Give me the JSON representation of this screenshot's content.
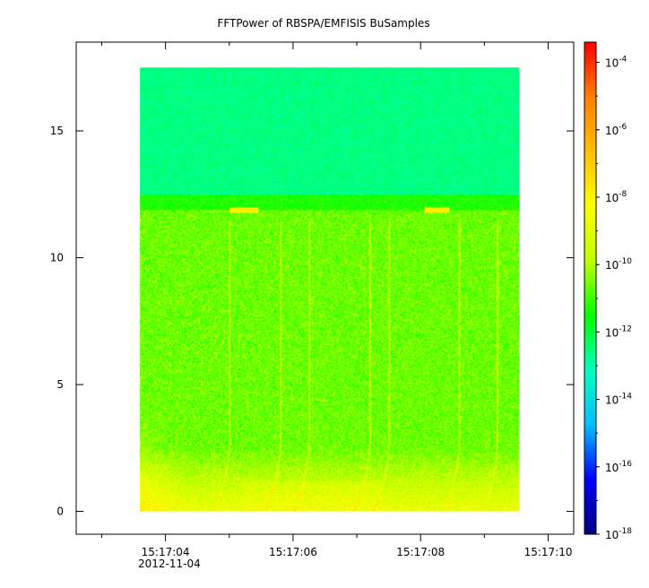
{
  "chart_data": {
    "type": "heatmap",
    "title": "FFTPower of RBSPA/EMFISIS  BuSamples",
    "xlabel": "",
    "ylabel": "",
    "x_ticks": [
      "15:17:04",
      "15:17:06",
      "15:17:08",
      "15:17:10"
    ],
    "x_ticks_seconds": [
      4,
      6,
      8,
      10
    ],
    "x_minor_ticks_seconds": [
      3,
      5,
      7,
      9
    ],
    "x_sublabel": "2012-11-04",
    "xlim_seconds": [
      2.6,
      10.4
    ],
    "data_time_range_seconds": [
      3.6,
      9.55
    ],
    "y_ticks": [
      0,
      5,
      10,
      15
    ],
    "ylim": [
      -0.9,
      18.5
    ],
    "data_y_range": [
      0,
      17.5
    ],
    "colorbar": {
      "scale": "log",
      "min_exp": -18,
      "max_exp": -3.4,
      "tick_exponents": [
        -4,
        -6,
        -8,
        -10,
        -12,
        -14,
        -16,
        -18
      ],
      "colormap": [
        "#00007f",
        "#0000ff",
        "#00bfff",
        "#00ffbf",
        "#00ff00",
        "#bfff00",
        "#ffff00",
        "#ffbf00",
        "#ff7f00",
        "#ff0000"
      ]
    },
    "features": {
      "band_edge_y": 12.2,
      "upper_band_level_exp": -12.6,
      "lower_band_level_exp": -10.6,
      "near_zero_enhanced_level_exp": -8,
      "lines_at_y_12": [
        {
          "t_start": 5.0,
          "t_end": 5.45
        },
        {
          "t_start": 8.05,
          "t_end": 8.45
        }
      ],
      "chorus_streak_times_seconds": [
        5.0,
        5.8,
        6.25,
        7.2,
        7.5,
        8.6,
        9.2
      ]
    }
  }
}
